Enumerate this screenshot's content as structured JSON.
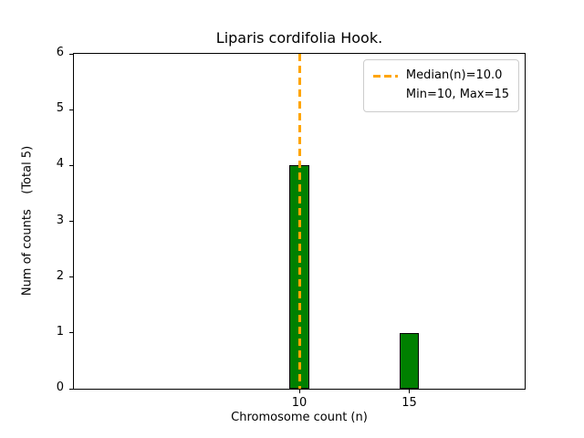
{
  "chart_data": {
    "type": "bar",
    "title": "Liparis cordifolia Hook.",
    "xlabel": "Chromosome count (n)",
    "ylabel": "Num of counts    (Total 5)",
    "categories": [
      10,
      15
    ],
    "values": [
      4,
      1
    ],
    "bar_width_units": 0.9,
    "bar_color": "#008000",
    "bar_edge_color": "#000000",
    "xlim": [
      -0.25,
      20.25
    ],
    "ylim": [
      0,
      6
    ],
    "xticks": [
      10,
      15
    ],
    "yticks": [
      0,
      1,
      2,
      3,
      4,
      5,
      6
    ],
    "grid": false,
    "median_line": {
      "x": 10,
      "color": "#FFA500",
      "style": "dashed"
    },
    "legend": {
      "position": "upper right",
      "entries": [
        {
          "label": "Median(n)=10.0",
          "handle": "dashed-line",
          "color": "#FFA500"
        },
        {
          "label": "Min=10, Max=15",
          "handle": "none"
        }
      ]
    }
  }
}
